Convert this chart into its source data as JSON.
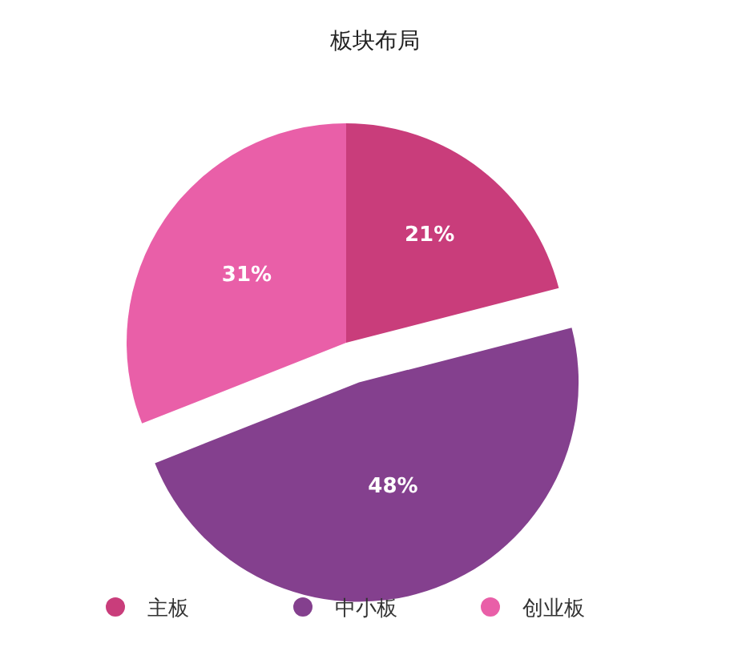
{
  "chart_data": {
    "type": "pie",
    "title": "板块布局",
    "categories": [
      "主板",
      "中小板",
      "创业板"
    ],
    "values": [
      21,
      48,
      31
    ],
    "colors": [
      "#c93d7b",
      "#84408e",
      "#e95fa8"
    ],
    "value_labels": [
      "21%",
      "48%",
      "31%"
    ],
    "legend": "bottom"
  }
}
